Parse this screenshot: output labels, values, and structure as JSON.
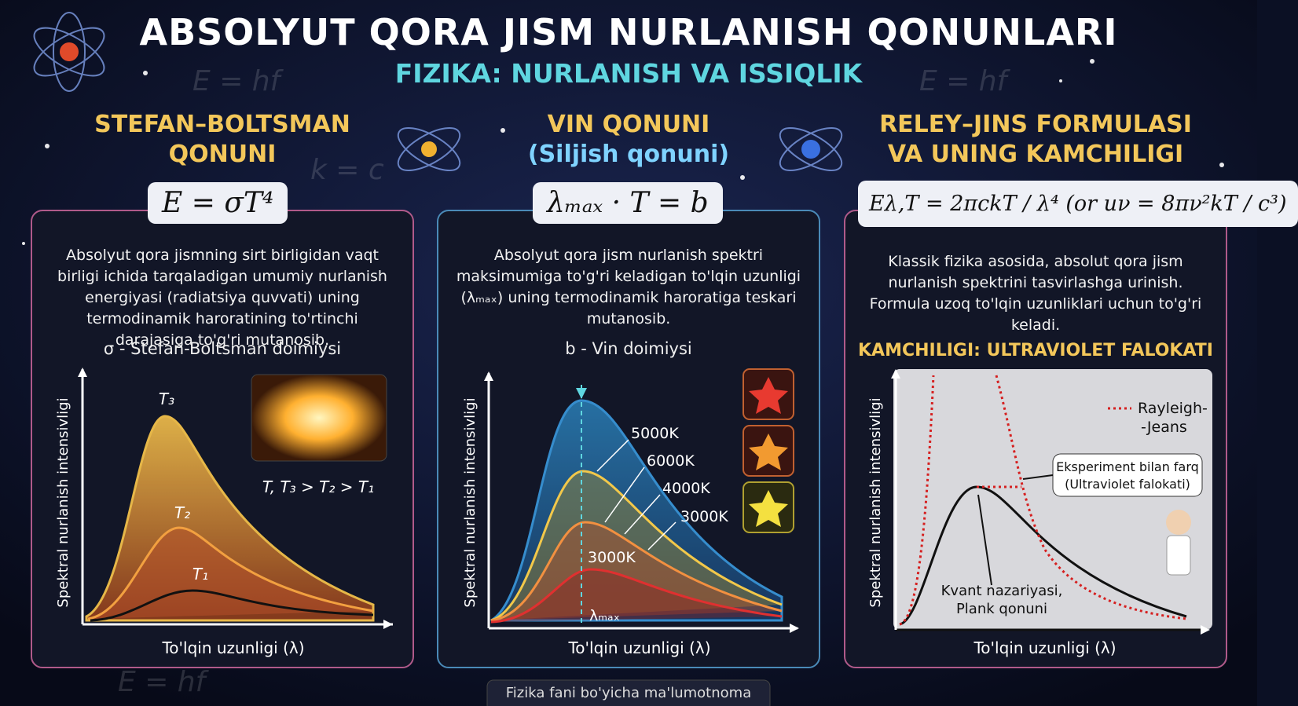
{
  "header": {
    "title": "ABSOLYUT QORA JISM NURLANISH QONUNLARI",
    "subtitle": "FIZIKA: NURLANISH VA ISSIQLIK"
  },
  "background_formulas": [
    "E = hf",
    "E = hf",
    "k = c",
    "E = hf"
  ],
  "panels": [
    {
      "title_lines": [
        "STEFAN–BOLTSMAN",
        "QONUNI"
      ],
      "formula": "E = σT⁴",
      "description": "Absolyut qora jismning sirt birligidan vaqt birligi ichida tarqaladigan umumiy nurlanish energiyasi (radiatsiya quvvati) uning termodinamik haroratining to'rtinchi darajasiga to'g'ri mutanosib.",
      "constant": "σ - Stefan-Boltsman doimiysi",
      "chart": {
        "y_label": "Spektral nurlanish intensivligi",
        "x_label": "To'lqin uzunligi (λ)",
        "curve_labels": [
          "T₃",
          "T₂",
          "T₁"
        ],
        "note": "T, T₃ > T₂ > T₁"
      }
    },
    {
      "title_lines": [
        "VIN QONUNI",
        "(Siljish qonuni)"
      ],
      "formula": "λₘₐₓ · T = b",
      "description": "Absolyut qora jism nurlanish spektri maksimumiga to'g'ri keladigan to'lqin uzunligi (λₘₐₓ) uning termodinamik haroratiga teskari mutanosib.",
      "constant": "b - Vin doimiysi",
      "chart": {
        "y_label": "Spektral nurlanish intensivligi",
        "x_label": "To'lqin uzunligi (λ)",
        "curve_labels": [
          "5000K",
          "6000K",
          "4000K",
          "3000K",
          "3000K"
        ],
        "peak_label": "λₘₐₓ"
      }
    },
    {
      "title_lines": [
        "RELEY–JINS FORMULASI",
        "VA UNING KAMCHILIGI"
      ],
      "formula": "Eλ,T = 2πckT / λ⁴  (or uν = 8πν²kT / c³)",
      "description": "Klassik fizika asosida, absolut qora jism nurlanish spektrini tasvirlashga urinish. Formula uzoq to'lqin uzunliklari uchun to'g'ri keladi.",
      "warning": "KAMCHILIGI: ULTRAVIOLET FALOKATI",
      "chart": {
        "y_label": "Spektral nurlanish intensivligi",
        "x_label": "To'lqin uzunligi (λ)",
        "legend_lines": [
          "Rayleigh-",
          "-Jeans"
        ],
        "callout_lines": [
          "Eksperiment bilan farq",
          "(Ultraviolet falokati)"
        ],
        "quantum_lines": [
          "Kvant nazariyasi,",
          "Plank qonuni"
        ]
      }
    }
  ],
  "footer": "Fizika fani bo'yicha ma'lumotnoma"
}
